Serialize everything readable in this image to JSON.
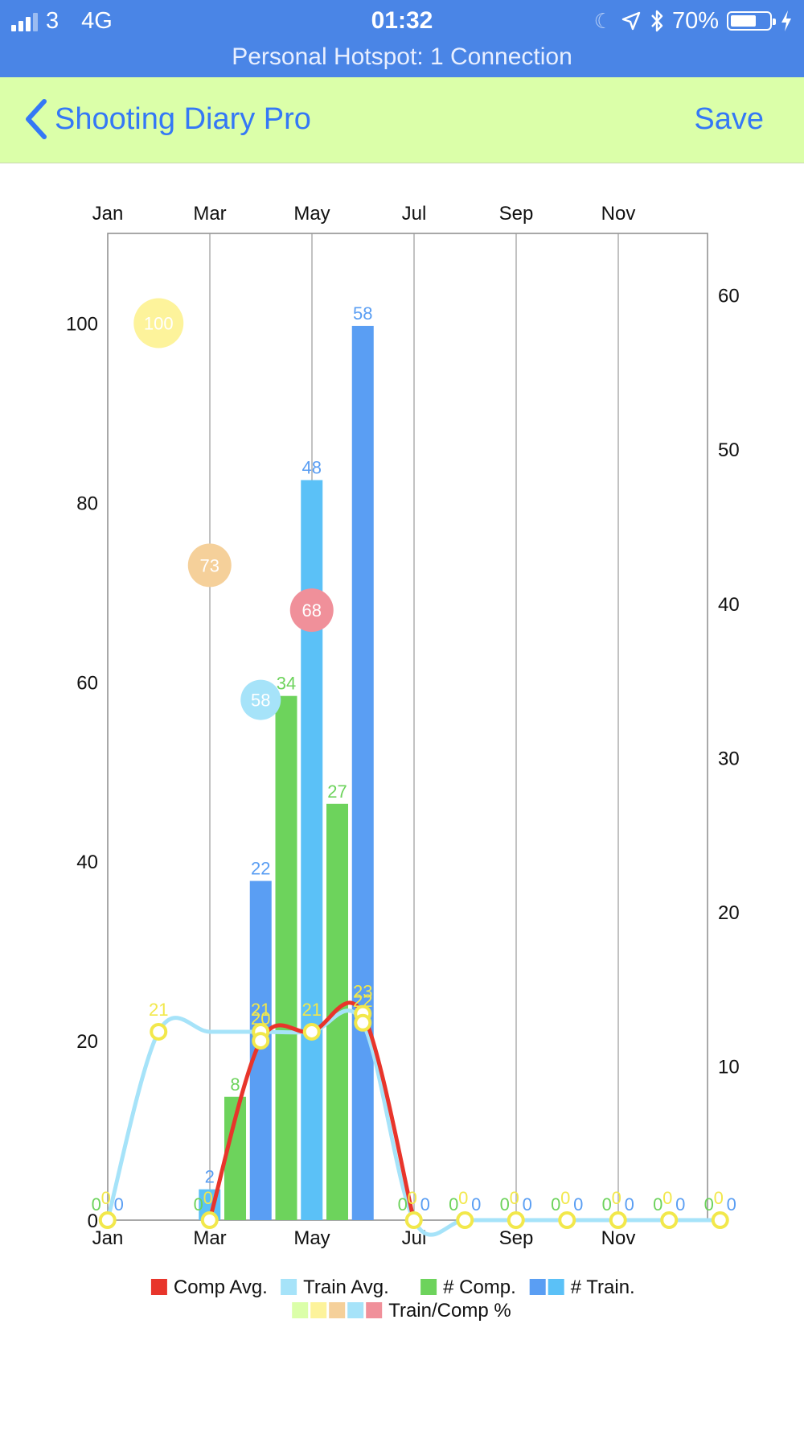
{
  "status_bar": {
    "carrier": "3",
    "network": "4G",
    "time": "01:32",
    "battery": "70%",
    "battery_level": 0.7,
    "hotspot": "Personal Hotspot: 1 Connection",
    "icons": [
      "cellular-signal-icon",
      "moon-icon",
      "location-arrow-icon",
      "bluetooth-icon",
      "battery-icon",
      "charging-bolt-icon"
    ]
  },
  "nav": {
    "back_label": "Shooting Diary Pro",
    "save_label": "Save"
  },
  "chart_data": {
    "type": "bar",
    "x_tick_labels": [
      "Jan",
      "Mar",
      "May",
      "Jul",
      "Sep",
      "Nov"
    ],
    "y_left": {
      "ticks": [
        "0",
        "20",
        "40",
        "60",
        "80",
        "100"
      ],
      "range": [
        0,
        110
      ]
    },
    "y_right": {
      "ticks": [
        "0",
        "10",
        "20",
        "30",
        "40",
        "50",
        "60"
      ],
      "range": [
        0,
        64
      ]
    },
    "grid": "vertical",
    "legend_placement": "bottom",
    "bar_series": [
      {
        "name": "# Comp.",
        "color": "#6dd35c",
        "axis": "right",
        "points": [
          {
            "x": 3.5,
            "value": 8,
            "label": "8"
          },
          {
            "x": 4.5,
            "value": 34,
            "label": "34"
          },
          {
            "x": 5.5,
            "value": 27,
            "label": "27"
          }
        ]
      },
      {
        "name": "# Train.",
        "colors": [
          "#5a9ef3",
          "#5bc1f7"
        ],
        "axis": "right",
        "points": [
          {
            "x": 3,
            "value": 2,
            "label": "2",
            "color": "#5bc1f7"
          },
          {
            "x": 4,
            "value": 22,
            "label": "22",
            "color": "#5a9ef3"
          },
          {
            "x": 5,
            "value": 48,
            "label": "48",
            "color": "#5bc1f7"
          },
          {
            "x": 6,
            "value": 58,
            "label": "58",
            "color": "#5a9ef3"
          }
        ]
      }
    ],
    "zero_labels": [
      {
        "x": 1,
        "comp": "0",
        "comp_avg": "0",
        "train": "0"
      },
      {
        "x": 3,
        "comp": "0",
        "comp_avg": "0",
        "train": ""
      },
      {
        "x": 7,
        "comp": "0",
        "comp_avg": "0",
        "train": "0"
      },
      {
        "x": 8,
        "comp": "0",
        "comp_avg": "0",
        "train": "0"
      },
      {
        "x": 9,
        "comp": "0",
        "comp_avg": "0",
        "train": "0"
      },
      {
        "x": 10,
        "comp": "0",
        "comp_avg": "0",
        "train": "0"
      },
      {
        "x": 11,
        "comp": "0",
        "comp_avg": "0",
        "train": "0"
      },
      {
        "x": 12,
        "comp": "0",
        "comp_avg": "0",
        "train": "0"
      },
      {
        "x": 13,
        "comp": "0",
        "comp_avg": "0",
        "train": "0"
      }
    ],
    "line_series": [
      {
        "name": "Comp Avg.",
        "color": "#e8352b",
        "axis": "left",
        "points": [
          [
            3,
            0
          ],
          [
            4,
            20
          ],
          [
            5,
            21
          ],
          [
            6,
            23
          ],
          [
            7,
            0
          ]
        ]
      },
      {
        "name": "Train Avg.",
        "color": "#a6e3f9",
        "axis": "left",
        "points": [
          [
            1,
            0
          ],
          [
            2,
            21
          ],
          [
            3,
            21
          ],
          [
            4,
            21
          ],
          [
            5,
            21
          ],
          [
            6,
            22
          ],
          [
            7,
            0
          ],
          [
            8,
            0
          ],
          [
            9,
            0
          ],
          [
            10,
            0
          ],
          [
            11,
            0
          ],
          [
            12,
            0
          ],
          [
            13,
            0
          ]
        ]
      }
    ],
    "markers": [
      {
        "x": 1,
        "y": 0
      },
      {
        "x": 2,
        "y": 21,
        "label": "21"
      },
      {
        "x": 3,
        "y": 0
      },
      {
        "x": 4,
        "y": 21,
        "label": "21"
      },
      {
        "x": 4,
        "y": 20,
        "label": "20"
      },
      {
        "x": 5,
        "y": 21,
        "label": "21"
      },
      {
        "x": 6,
        "y": 23,
        "label": "23"
      },
      {
        "x": 6,
        "y": 22,
        "label": "22"
      },
      {
        "x": 7,
        "y": 0
      },
      {
        "x": 8,
        "y": 0
      },
      {
        "x": 9,
        "y": 0
      },
      {
        "x": 10,
        "y": 0
      },
      {
        "x": 11,
        "y": 0
      },
      {
        "x": 12,
        "y": 0
      },
      {
        "x": 13,
        "y": 0
      }
    ],
    "bubbles": {
      "name": "Train/Comp %",
      "points": [
        {
          "x": 2,
          "y": 100,
          "label": "100",
          "color": "#fdf39b"
        },
        {
          "x": 3,
          "y": 73,
          "label": "73",
          "color": "#f5d09a"
        },
        {
          "x": 4,
          "y": 58,
          "label": "58",
          "color": "#a6e3f9"
        },
        {
          "x": 5,
          "y": 68,
          "label": "68",
          "color": "#f0909a"
        }
      ]
    },
    "legend": [
      {
        "label": "Comp Avg.",
        "colors": [
          "#e8352b"
        ]
      },
      {
        "label": "Train Avg.",
        "colors": [
          "#a6e3f9"
        ]
      },
      {
        "label": "# Comp.",
        "colors": [
          "#6dd35c"
        ]
      },
      {
        "label": "# Train.",
        "colors": [
          "#5a9ef3",
          "#5bc1f7"
        ]
      },
      {
        "label": "Train/Comp %",
        "colors": [
          "#dbffa9",
          "#fdf39b",
          "#f5d09a",
          "#a6e3f9",
          "#f0909a"
        ]
      }
    ],
    "colors": {
      "label_comp": "#6dd35c",
      "label_train": "#5a9ef3",
      "label_marker": "#f2e84b",
      "marker_stroke": "#f2e84b"
    }
  }
}
